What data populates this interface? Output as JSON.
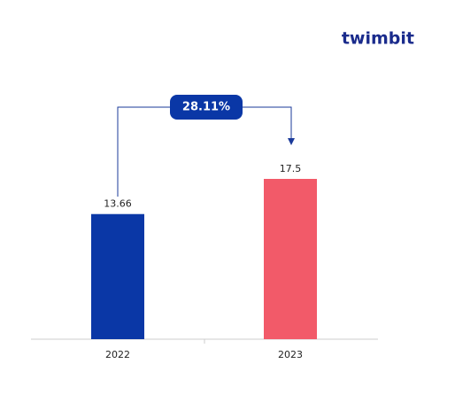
{
  "chart_data": {
    "type": "bar",
    "logo": "twimbit",
    "annotation": "28.11%",
    "categories": [
      "2022",
      "2023"
    ],
    "values": [
      13.66,
      17.5
    ],
    "value_labels": [
      "13.66",
      "17.5"
    ],
    "colors": [
      "#0a37a6",
      "#f25a69"
    ]
  }
}
